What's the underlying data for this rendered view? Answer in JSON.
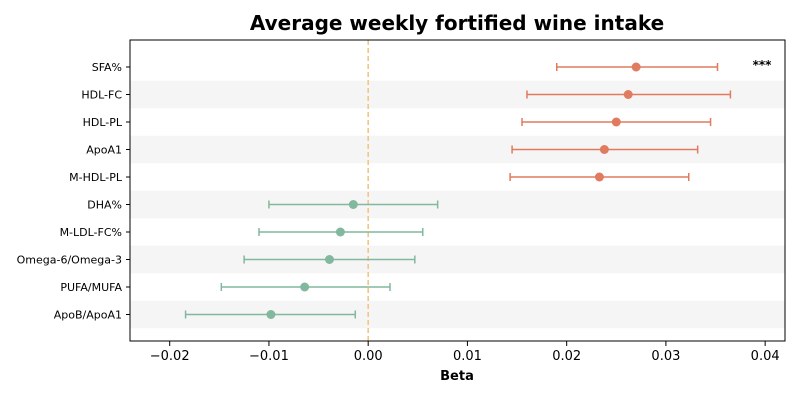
{
  "chart_data": {
    "type": "forest",
    "title": "Average weekly fortified wine intake",
    "xlabel": "Beta",
    "ylabel": "",
    "xlim": [
      -0.024,
      0.042
    ],
    "xticks": [
      -0.02,
      -0.01,
      0.0,
      0.01,
      0.02,
      0.03,
      0.04
    ],
    "xtick_labels": [
      "−0.02",
      "−0.01",
      "0.00",
      "0.01",
      "0.02",
      "0.03",
      "0.04"
    ],
    "reference_line": 0.0,
    "grid": false,
    "row_banding": true,
    "colors": {
      "positive": "#e07b5f",
      "negative": "#82b89e",
      "reference": "#f2c27e",
      "band": "#f5f5f5"
    },
    "rows": [
      {
        "label": "SFA%",
        "beta": 0.027,
        "low": 0.019,
        "high": 0.0352,
        "annotation": "***"
      },
      {
        "label": "HDL-FC",
        "beta": 0.0262,
        "low": 0.016,
        "high": 0.0365,
        "annotation": ""
      },
      {
        "label": "HDL-PL",
        "beta": 0.025,
        "low": 0.0155,
        "high": 0.0345,
        "annotation": ""
      },
      {
        "label": "ApoA1",
        "beta": 0.0238,
        "low": 0.0145,
        "high": 0.0332,
        "annotation": ""
      },
      {
        "label": "M-HDL-PL",
        "beta": 0.0233,
        "low": 0.0143,
        "high": 0.0323,
        "annotation": ""
      },
      {
        "label": "DHA%",
        "beta": -0.0015,
        "low": -0.01,
        "high": 0.007,
        "annotation": ""
      },
      {
        "label": "M-LDL-FC%",
        "beta": -0.0028,
        "low": -0.011,
        "high": 0.0055,
        "annotation": ""
      },
      {
        "label": "Omega-6/Omega-3",
        "beta": -0.0039,
        "low": -0.0125,
        "high": 0.0047,
        "annotation": ""
      },
      {
        "label": "PUFA/MUFA",
        "beta": -0.0064,
        "low": -0.0148,
        "high": 0.0022,
        "annotation": ""
      },
      {
        "label": "ApoB/ApoA1",
        "beta": -0.0098,
        "low": -0.0184,
        "high": -0.0013,
        "annotation": ""
      }
    ]
  }
}
